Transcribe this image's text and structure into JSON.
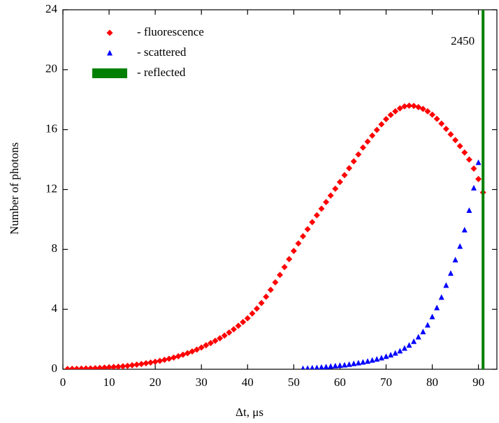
{
  "chart_data": {
    "type": "scatter",
    "x_label": "Δt, μs",
    "y_label": "Number of photons",
    "xlim": [
      0,
      94
    ],
    "ylim": [
      0,
      24
    ],
    "xticks": [
      0,
      10,
      20,
      30,
      40,
      50,
      60,
      70,
      80,
      90
    ],
    "yticks": [
      0,
      4,
      8,
      12,
      16,
      20,
      24
    ],
    "series": [
      {
        "name": "- fluorescence",
        "color": "#ff0000",
        "marker": "diamond",
        "x": [
          1,
          2,
          3,
          4,
          5,
          6,
          7,
          8,
          9,
          10,
          11,
          12,
          13,
          14,
          15,
          16,
          17,
          18,
          19,
          20,
          21,
          22,
          23,
          24,
          25,
          26,
          27,
          28,
          29,
          30,
          31,
          32,
          33,
          34,
          35,
          36,
          37,
          38,
          39,
          40,
          41,
          42,
          43,
          44,
          45,
          46,
          47,
          48,
          49,
          50,
          51,
          52,
          53,
          54,
          55,
          56,
          57,
          58,
          59,
          60,
          61,
          62,
          63,
          64,
          65,
          66,
          67,
          68,
          69,
          70,
          71,
          72,
          73,
          74,
          75,
          76,
          77,
          78,
          79,
          80,
          81,
          82,
          83,
          84,
          85,
          86,
          87,
          88,
          89,
          90,
          91
        ],
        "values": [
          0.02,
          0.03,
          0.03,
          0.04,
          0.05,
          0.06,
          0.07,
          0.09,
          0.11,
          0.13,
          0.15,
          0.17,
          0.2,
          0.23,
          0.27,
          0.31,
          0.35,
          0.4,
          0.45,
          0.5,
          0.56,
          0.63,
          0.7,
          0.78,
          0.87,
          0.97,
          1.07,
          1.19,
          1.31,
          1.45,
          1.6,
          1.75,
          1.9,
          2.07,
          2.25,
          2.45,
          2.67,
          2.9,
          3.15,
          3.4,
          3.72,
          4.05,
          4.42,
          4.84,
          5.3,
          5.8,
          6.3,
          6.82,
          7.35,
          7.9,
          8.4,
          8.88,
          9.35,
          9.82,
          10.28,
          10.72,
          11.16,
          11.6,
          12.05,
          12.5,
          12.96,
          13.42,
          13.88,
          14.34,
          14.8,
          15.2,
          15.6,
          15.98,
          16.35,
          16.7,
          16.98,
          17.22,
          17.42,
          17.55,
          17.6,
          17.58,
          17.5,
          17.38,
          17.22,
          17.0,
          16.72,
          16.4,
          16.05,
          15.68,
          15.3,
          14.9,
          14.47,
          14.0,
          13.4,
          12.7,
          11.8
        ]
      },
      {
        "name": "- scattered",
        "color": "#0000ff",
        "marker": "triangle",
        "x": [
          52,
          53,
          54,
          55,
          56,
          57,
          58,
          59,
          60,
          61,
          62,
          63,
          64,
          65,
          66,
          67,
          68,
          69,
          70,
          71,
          72,
          73,
          74,
          75,
          76,
          77,
          78,
          79,
          80,
          81,
          82,
          83,
          84,
          85,
          86,
          87,
          88,
          89,
          90
        ],
        "values": [
          0.04,
          0.06,
          0.08,
          0.1,
          0.13,
          0.16,
          0.19,
          0.22,
          0.25,
          0.28,
          0.32,
          0.37,
          0.42,
          0.47,
          0.53,
          0.6,
          0.67,
          0.75,
          0.85,
          0.95,
          1.07,
          1.22,
          1.4,
          1.6,
          1.85,
          2.15,
          2.5,
          2.95,
          3.5,
          4.1,
          4.8,
          5.6,
          6.4,
          7.3,
          8.2,
          9.3,
          10.6,
          12.1,
          13.8
        ]
      },
      {
        "name": "- reflected",
        "color": "#008000",
        "marker": "bar",
        "x": [
          91
        ],
        "values": [
          2450
        ],
        "value_labels": [
          "2450"
        ]
      }
    ]
  }
}
